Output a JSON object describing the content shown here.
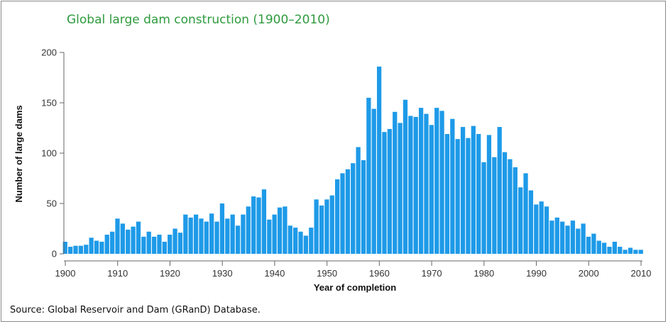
{
  "chart_data": {
    "type": "bar",
    "title": "Global large dam construction (1900–2010)",
    "xlabel": "Year of completion",
    "ylabel": "Number of large dams",
    "source": "Source: Global Reservoir and Dam (GRanD) Database.",
    "ylim": [
      0,
      200
    ],
    "xlim": [
      1900,
      2010
    ],
    "y_ticks": [
      0,
      50,
      100,
      150,
      200
    ],
    "x_ticks": [
      1900,
      1910,
      1920,
      1930,
      1940,
      1950,
      1960,
      1970,
      1980,
      1990,
      2000,
      2010
    ],
    "bar_color": "#1e9ae8",
    "categories": [
      1900,
      1901,
      1902,
      1903,
      1904,
      1905,
      1906,
      1907,
      1908,
      1909,
      1910,
      1911,
      1912,
      1913,
      1914,
      1915,
      1916,
      1917,
      1918,
      1919,
      1920,
      1921,
      1922,
      1923,
      1924,
      1925,
      1926,
      1927,
      1928,
      1929,
      1930,
      1931,
      1932,
      1933,
      1934,
      1935,
      1936,
      1937,
      1938,
      1939,
      1940,
      1941,
      1942,
      1943,
      1944,
      1945,
      1946,
      1947,
      1948,
      1949,
      1950,
      1951,
      1952,
      1953,
      1954,
      1955,
      1956,
      1957,
      1958,
      1959,
      1960,
      1961,
      1962,
      1963,
      1964,
      1965,
      1966,
      1967,
      1968,
      1969,
      1970,
      1971,
      1972,
      1973,
      1974,
      1975,
      1976,
      1977,
      1978,
      1979,
      1980,
      1981,
      1982,
      1983,
      1984,
      1985,
      1986,
      1987,
      1988,
      1989,
      1990,
      1991,
      1992,
      1993,
      1994,
      1995,
      1996,
      1997,
      1998,
      1999,
      2000,
      2001,
      2002,
      2003,
      2004,
      2005,
      2006,
      2007,
      2008,
      2009,
      2010
    ],
    "values": [
      12,
      7,
      8,
      8,
      9,
      16,
      13,
      12,
      19,
      22,
      35,
      30,
      24,
      27,
      32,
      17,
      22,
      17,
      19,
      12,
      19,
      25,
      21,
      39,
      36,
      39,
      35,
      32,
      40,
      32,
      50,
      35,
      39,
      28,
      39,
      47,
      57,
      56,
      64,
      34,
      39,
      46,
      47,
      28,
      26,
      22,
      18,
      26,
      54,
      48,
      54,
      58,
      74,
      80,
      84,
      90,
      106,
      93,
      155,
      144,
      186,
      121,
      124,
      141,
      130,
      153,
      137,
      136,
      145,
      139,
      128,
      145,
      142,
      119,
      134,
      114,
      126,
      115,
      127,
      119,
      91,
      118,
      96,
      126,
      101,
      94,
      86,
      66,
      80,
      63,
      49,
      52,
      47,
      33,
      36,
      32,
      28,
      33,
      25,
      30,
      17,
      20,
      13,
      11,
      7,
      12,
      7,
      4,
      6,
      4,
      4
    ]
  }
}
